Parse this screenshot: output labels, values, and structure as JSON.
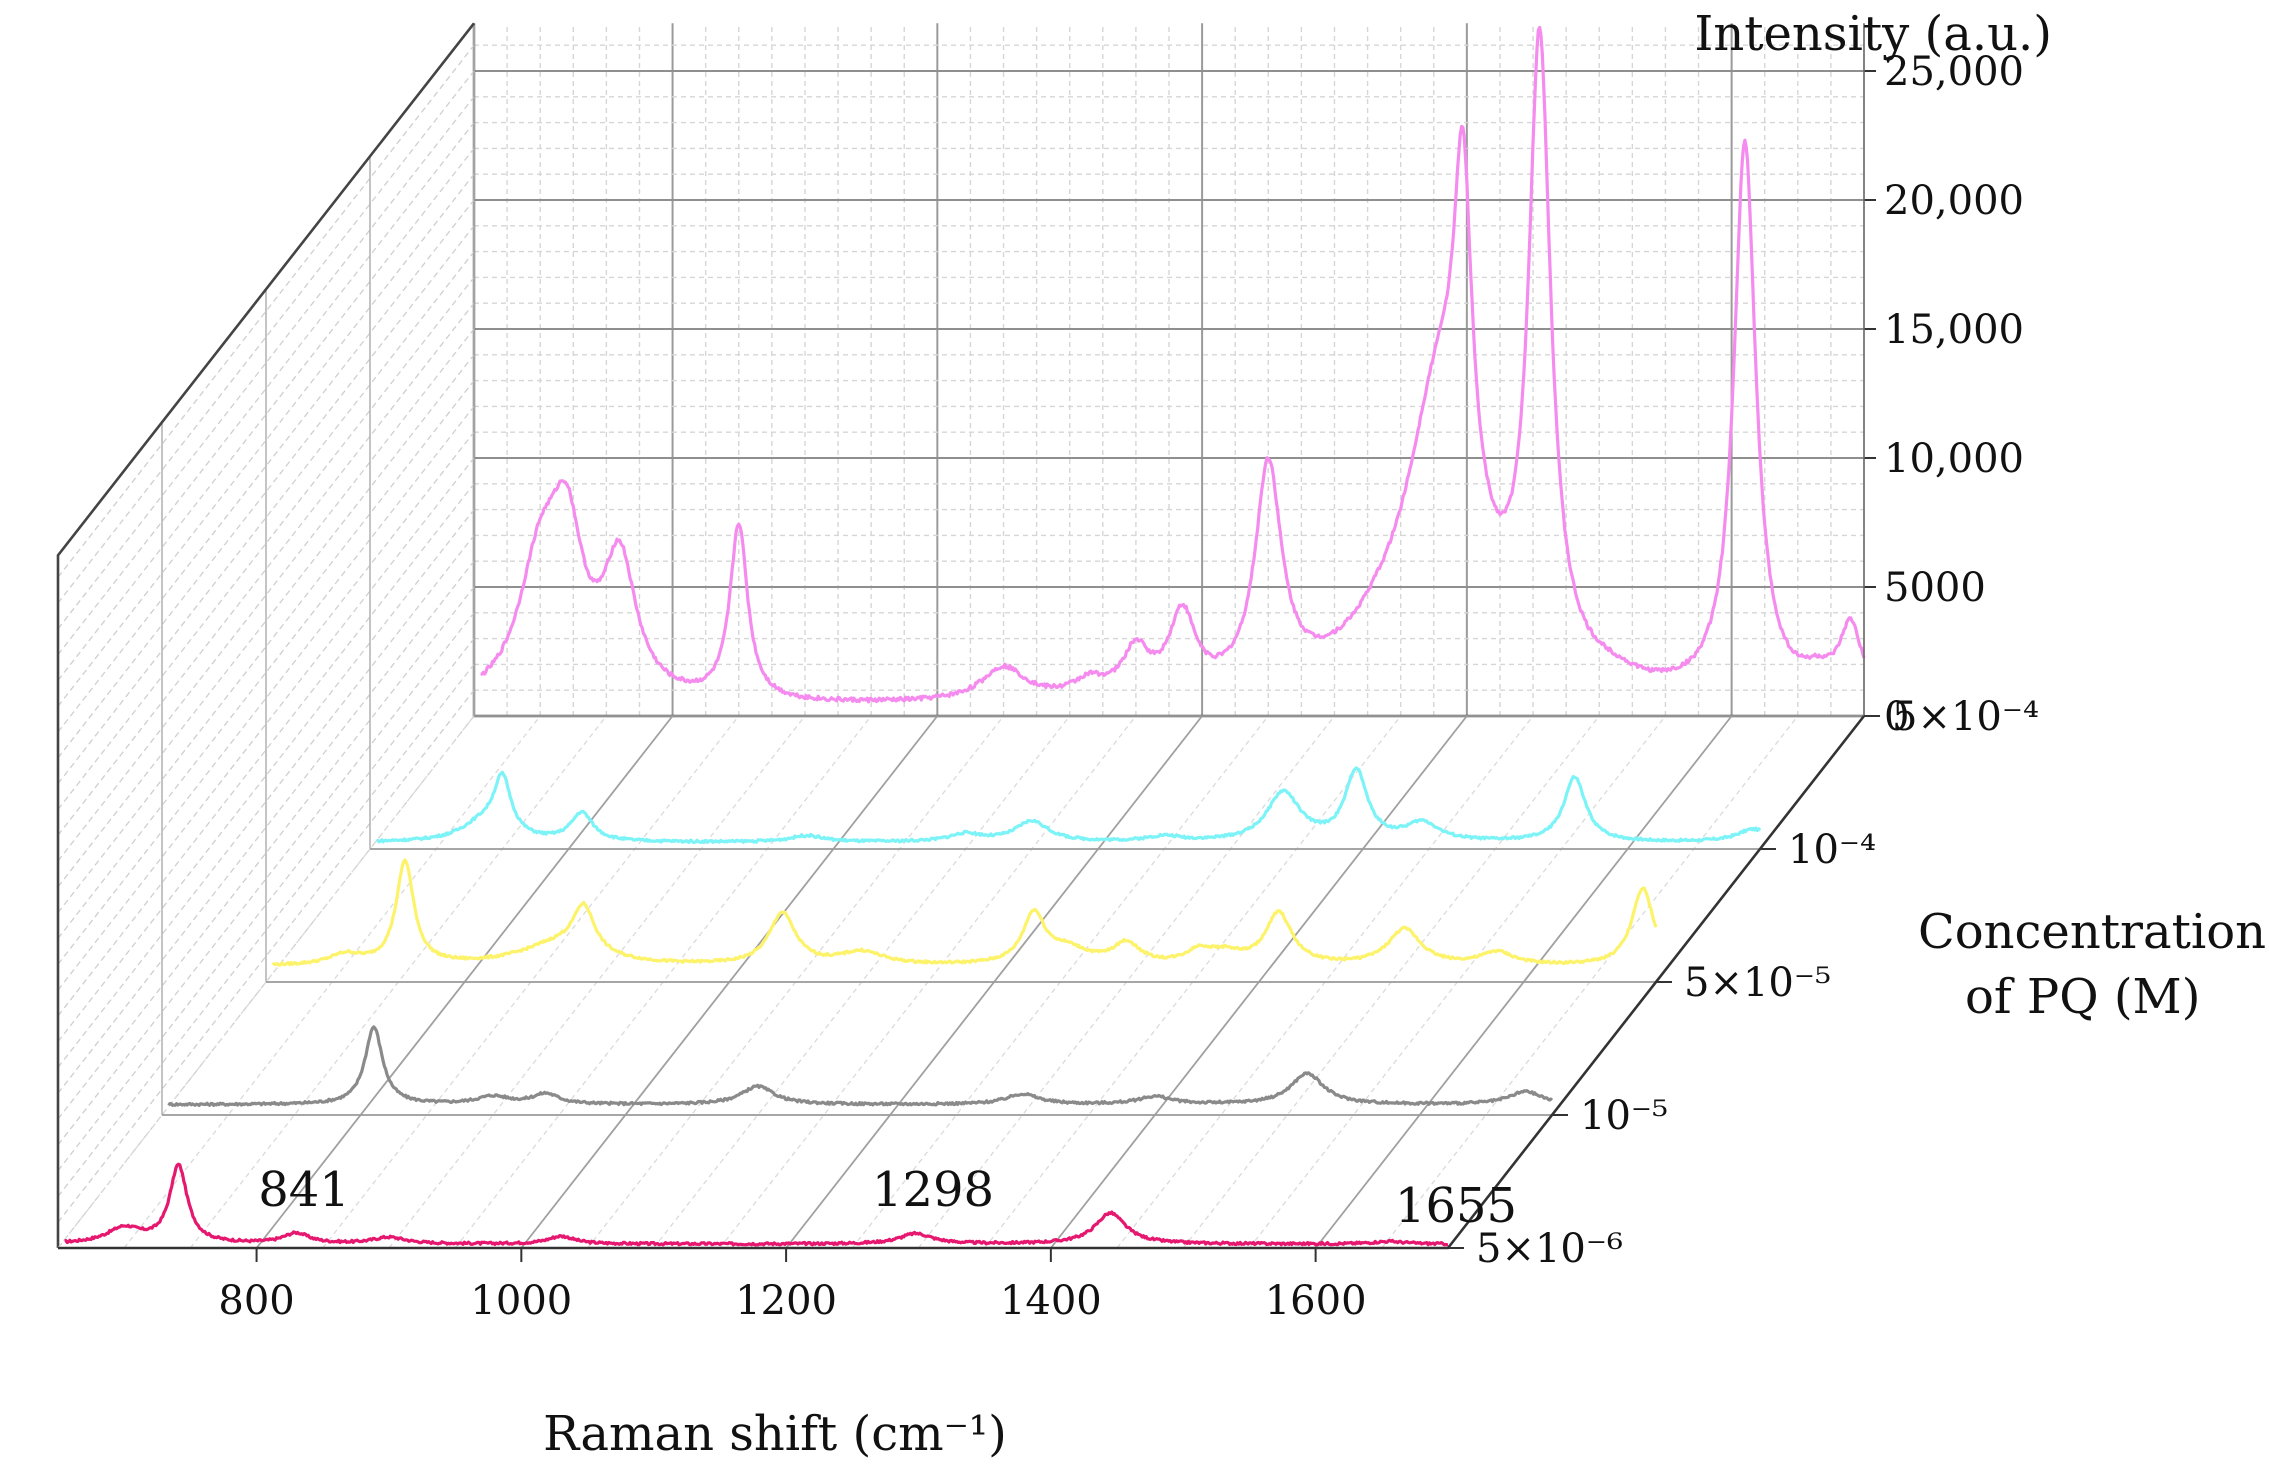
{
  "chart_data": {
    "type": "line",
    "title": "",
    "xlabel": "Raman shift (cm⁻¹)",
    "ylabel": "Intensity (a.u.)",
    "zlabel_line1": "Concentration",
    "zlabel_line2": "of PQ (M)",
    "xlim": [
      650,
      1700
    ],
    "ylim": [
      0,
      25000
    ],
    "x_ticks": [
      "800",
      "1000",
      "1200",
      "1400",
      "1600"
    ],
    "y_ticks": [
      "0",
      "5000",
      "10,000",
      "15,000",
      "20,000",
      "25,000"
    ],
    "z_ticks": [
      "5×10⁻⁶",
      "10⁻⁵",
      "5×10⁻⁵",
      "10⁻⁴",
      "5×10⁻⁴"
    ],
    "annotations": [
      "841",
      "1298",
      "1655"
    ],
    "grid": true,
    "series": [
      {
        "concentration": "5×10⁻⁶",
        "color": "#e6176f",
        "baseline": 150,
        "peaks": [
          [
            700,
            600,
            16
          ],
          [
            741,
            3000,
            8
          ],
          [
            830,
            400,
            12
          ],
          [
            900,
            250,
            15
          ],
          [
            1030,
            300,
            12
          ],
          [
            1298,
            400,
            15
          ],
          [
            1445,
            1200,
            14
          ],
          [
            1655,
            100,
            15
          ]
        ]
      },
      {
        "concentration": "10⁻⁵",
        "color": "#8a8a8a",
        "baseline": 400,
        "peaks": [
          [
            810,
            3000,
            8
          ],
          [
            900,
            300,
            15
          ],
          [
            940,
            400,
            12
          ],
          [
            1100,
            700,
            15
          ],
          [
            1300,
            400,
            15
          ],
          [
            1400,
            300,
            15
          ],
          [
            1515,
            1200,
            15
          ],
          [
            1680,
            500,
            15
          ]
        ]
      },
      {
        "concentration": "5×10⁻⁵",
        "color": "#fdf36b",
        "baseline": 600,
        "peaks": [
          [
            710,
            400,
            15
          ],
          [
            755,
            4000,
            8
          ],
          [
            870,
            800,
            35
          ],
          [
            890,
            1800,
            10
          ],
          [
            1040,
            2000,
            12
          ],
          [
            1100,
            500,
            20
          ],
          [
            1230,
            1900,
            10
          ],
          [
            1255,
            600,
            20
          ],
          [
            1300,
            800,
            12
          ],
          [
            1355,
            500,
            12
          ],
          [
            1375,
            400,
            15
          ],
          [
            1415,
            2000,
            12
          ],
          [
            1510,
            1400,
            15
          ],
          [
            1580,
            500,
            15
          ],
          [
            1690,
            3000,
            10
          ]
        ]
      },
      {
        "concentration": "10⁻⁴",
        "color": "#7cf3f7",
        "baseline": 250,
        "peaks": [
          [
            735,
            700,
            20
          ],
          [
            750,
            2200,
            8
          ],
          [
            810,
            1100,
            10
          ],
          [
            980,
            250,
            15
          ],
          [
            1100,
            300,
            15
          ],
          [
            1150,
            800,
            15
          ],
          [
            1250,
            200,
            15
          ],
          [
            1340,
            1900,
            15
          ],
          [
            1395,
            2700,
            10
          ],
          [
            1445,
            700,
            15
          ],
          [
            1560,
            2500,
            10
          ],
          [
            1695,
            500,
            15
          ]
        ]
      },
      {
        "concentration": "5×10⁻⁴",
        "color": "#f58bee",
        "baseline": 300,
        "peaks": [
          [
            700,
            5000,
            20
          ],
          [
            720,
            5500,
            15
          ],
          [
            760,
            5200,
            15
          ],
          [
            850,
            6800,
            8
          ],
          [
            1050,
            1300,
            20
          ],
          [
            1115,
            600,
            15
          ],
          [
            1150,
            1700,
            12
          ],
          [
            1185,
            3000,
            12
          ],
          [
            1250,
            8500,
            12
          ],
          [
            1330,
            300,
            20
          ],
          [
            1365,
            2000,
            60
          ],
          [
            1380,
            10000,
            30
          ],
          [
            1397,
            12500,
            8
          ],
          [
            1455,
            24000,
            10
          ],
          [
            1510,
            300,
            20
          ],
          [
            1610,
            21500,
            10
          ],
          [
            1665,
            700,
            15
          ],
          [
            1690,
            2700,
            10
          ]
        ]
      }
    ]
  }
}
